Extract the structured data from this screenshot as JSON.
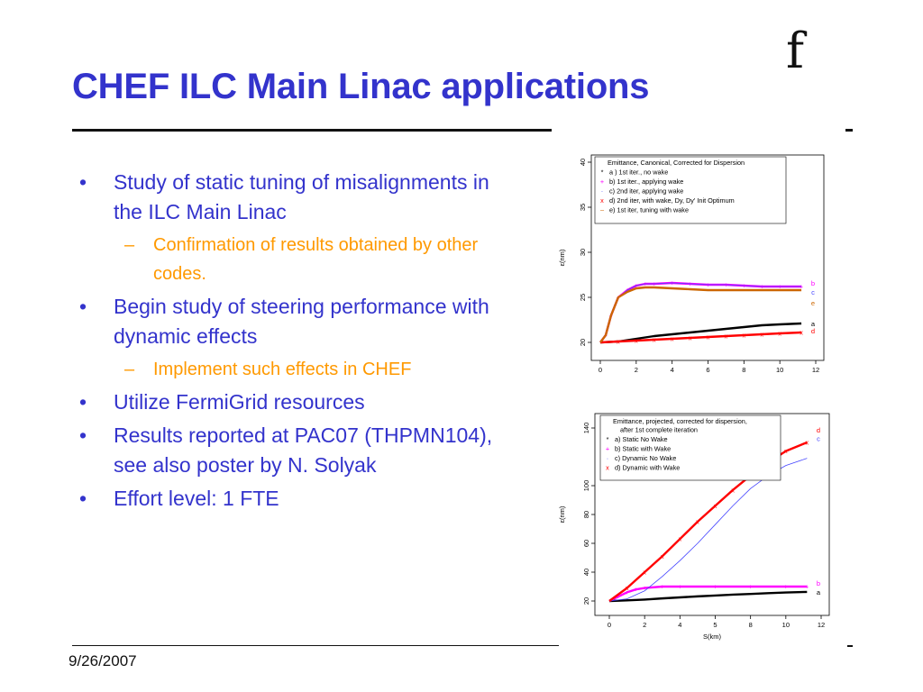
{
  "slide": {
    "title": "CHEF ILC Main Linac applications",
    "logo": "f",
    "date": "9/26/2007",
    "bullets": [
      {
        "text": "Study of static tuning of misalignments in the ILC Main Linac",
        "sub": [
          "Confirmation of results obtained by other codes."
        ]
      },
      {
        "text": "Begin study of steering performance with dynamic effects",
        "sub": [
          "Implement such effects in CHEF"
        ]
      },
      {
        "text": "Utilize FermiGrid resources",
        "sub": []
      },
      {
        "text": "Results reported at PAC07 (THPMN104), see also poster by N. Solyak",
        "sub": []
      },
      {
        "text": "Effort level: 1 FTE",
        "sub": []
      }
    ]
  },
  "chart_data": [
    {
      "type": "line",
      "title": "",
      "xlabel": "",
      "ylabel": "ε(nm)",
      "xlim": [
        0,
        12
      ],
      "ylim": [
        19,
        40
      ],
      "xticks": [
        "0",
        "2",
        "4",
        "6",
        "8",
        "10",
        "12"
      ],
      "yticks": [
        "20",
        "25",
        "30",
        "35",
        "40"
      ],
      "legend": {
        "placement": "top-right",
        "title": "Emittance, Canonical, Corrected for Dispersion",
        "entries": [
          {
            "marker": "*",
            "label": "a ) 1st iter., no wake",
            "color": "#000000"
          },
          {
            "marker": "+",
            "label": "b) 1st iter., applying wake",
            "color": "#ff00ff"
          },
          {
            "marker": "·",
            "label": "c) 2nd iter, applying wake",
            "color": "#4444ff"
          },
          {
            "marker": "x",
            "label": "d) 2nd iter, with wake, Dy, Dy' Init Optimum",
            "color": "#ff0000"
          },
          {
            "marker": "–",
            "label": "e) 1st iter, tuning with wake",
            "color": "#cc6600"
          }
        ]
      },
      "series": [
        {
          "name": "a",
          "color": "#000000",
          "x": [
            0,
            1,
            2,
            3,
            4,
            5,
            6,
            7,
            8,
            9,
            10,
            11.2
          ],
          "y": [
            20.0,
            20.1,
            20.4,
            20.7,
            20.9,
            21.1,
            21.3,
            21.5,
            21.7,
            21.9,
            22.0,
            22.1
          ]
        },
        {
          "name": "b",
          "color": "#ff00ff",
          "x": [
            0,
            0.3,
            0.6,
            1.0,
            1.5,
            2.0,
            2.5,
            3.0,
            4.0,
            5.0,
            6.0,
            7.0,
            8.0,
            9.0,
            10.0,
            11.2
          ],
          "y": [
            20.0,
            20.8,
            23.0,
            25.0,
            25.8,
            26.3,
            26.5,
            26.5,
            26.6,
            26.5,
            26.4,
            26.4,
            26.3,
            26.2,
            26.2,
            26.2
          ]
        },
        {
          "name": "c",
          "color": "#4444ff",
          "x": [
            0,
            0.3,
            0.6,
            1.0,
            1.5,
            2.0,
            2.5,
            3.0,
            4.0,
            5.0,
            6.0,
            7.0,
            8.0,
            9.0,
            10.0,
            11.2
          ],
          "y": [
            20.0,
            20.8,
            23.0,
            25.0,
            25.8,
            26.3,
            26.5,
            26.5,
            26.6,
            26.5,
            26.4,
            26.4,
            26.3,
            26.2,
            26.2,
            26.2
          ]
        },
        {
          "name": "d",
          "color": "#ff0000",
          "x": [
            0,
            1,
            2,
            3,
            4,
            5,
            6,
            7,
            8,
            9,
            10,
            11.2
          ],
          "y": [
            20.0,
            20.1,
            20.2,
            20.3,
            20.4,
            20.5,
            20.6,
            20.7,
            20.8,
            20.9,
            21.0,
            21.1
          ]
        },
        {
          "name": "e",
          "color": "#cc6600",
          "x": [
            0,
            0.3,
            0.6,
            1.0,
            1.5,
            2.0,
            2.5,
            3.0,
            4.0,
            5.0,
            6.0,
            7.0,
            8.0,
            9.0,
            10.0,
            11.2
          ],
          "y": [
            20.0,
            20.8,
            23.0,
            25.0,
            25.6,
            26.0,
            26.1,
            26.1,
            26.0,
            25.9,
            25.8,
            25.8,
            25.8,
            25.8,
            25.8,
            25.8
          ]
        }
      ]
    },
    {
      "type": "line",
      "title": "",
      "xlabel": "S(km)",
      "ylabel": "ε(nm)",
      "xlim": [
        0,
        12
      ],
      "ylim": [
        15,
        145
      ],
      "xticks": [
        "0",
        "2",
        "4",
        "5",
        "8",
        "10",
        "12"
      ],
      "yticks": [
        "20",
        "40",
        "60",
        "80",
        "100",
        "140"
      ],
      "legend": {
        "placement": "top-right",
        "title": "Emittance, projected, corrected for dispersion,",
        "subtitle": "after 1st complete iteration",
        "entries": [
          {
            "marker": "*",
            "label": "a) Static No Wake",
            "color": "#000000"
          },
          {
            "marker": "+",
            "label": "b) Static with Wake",
            "color": "#ff00ff"
          },
          {
            "marker": "·",
            "label": "c) Dynamic No Wake",
            "color": "#4444ff"
          },
          {
            "marker": "x",
            "label": "d) Dynamic with Wake",
            "color": "#ff0000"
          }
        ]
      },
      "series": [
        {
          "name": "a",
          "color": "#000000",
          "x": [
            0,
            1,
            2,
            3,
            4,
            5,
            6,
            7,
            8,
            9,
            10,
            11.2
          ],
          "y": [
            20,
            20.4,
            21,
            21.8,
            22.5,
            23.2,
            23.8,
            24.4,
            24.9,
            25.4,
            25.9,
            26.3
          ]
        },
        {
          "name": "b",
          "color": "#ff00ff",
          "x": [
            0,
            0.5,
            1.0,
            1.5,
            2.0,
            3.0,
            4.0,
            6.0,
            8.0,
            10.0,
            11.2
          ],
          "y": [
            20,
            23,
            26,
            28,
            29,
            30,
            30,
            30,
            30,
            30,
            30
          ]
        },
        {
          "name": "c",
          "color": "#4444ff",
          "x": [
            0,
            1,
            2,
            3,
            4,
            5,
            6,
            7,
            8,
            9,
            10,
            11.2
          ],
          "y": [
            20,
            21.5,
            27,
            37,
            48,
            60,
            73,
            86,
            98,
            107,
            114,
            119
          ]
        },
        {
          "name": "d",
          "color": "#ff0000",
          "x": [
            0,
            1,
            2,
            3,
            4,
            5,
            6,
            7,
            8,
            9,
            10,
            11.2
          ],
          "y": [
            20,
            29,
            40,
            51,
            63,
            75,
            86,
            97,
            107,
            116,
            124,
            130
          ]
        }
      ]
    }
  ]
}
